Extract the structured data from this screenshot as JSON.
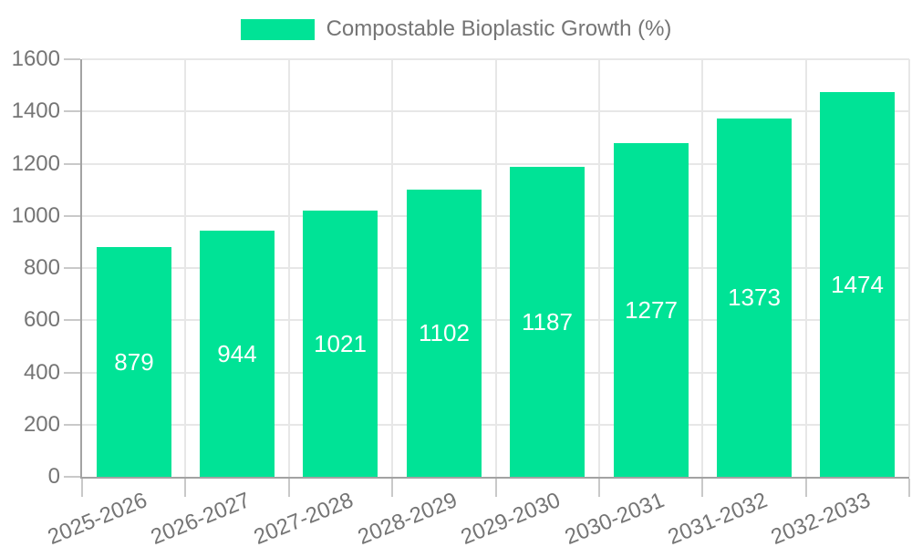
{
  "legend": {
    "label": "Compostable Bioplastic Growth (%)"
  },
  "colors": {
    "bar": "#00E396",
    "grid": "#E7E7E7",
    "axis": "#A3A3A3",
    "tick": "#C9C9C9",
    "text": "#757575",
    "value_label": "#FFFFFF",
    "background": "#FFFFFF"
  },
  "chart_data": {
    "type": "bar",
    "title": "Compostable Bioplastic Growth (%)",
    "categories": [
      "2025-2026",
      "2026-2027",
      "2027-2028",
      "2028-2029",
      "2029-2030",
      "2030-2031",
      "2031-2032",
      "2032-2033"
    ],
    "values": [
      879,
      944,
      1021,
      1102,
      1187,
      1277,
      1373,
      1474
    ],
    "series_name": "Compostable Bioplastic Growth (%)",
    "xlabel": "",
    "ylabel": "",
    "ylim": [
      0,
      1600
    ],
    "ytick_step": 200,
    "yticks": [
      0,
      200,
      400,
      600,
      800,
      1000,
      1200,
      1400,
      1600
    ],
    "grid": "both",
    "legend_position": "top",
    "value_labels": "inside-center",
    "xtick_label_rotation_deg": -22
  }
}
